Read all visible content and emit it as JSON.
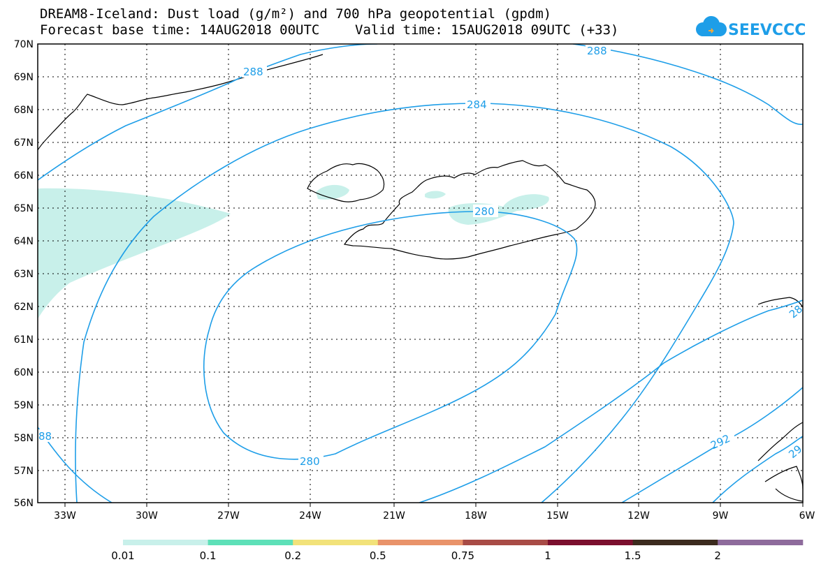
{
  "header": {
    "line1": "DREAM8-Iceland: Dust load (g/m²) and 700 hPa geopotential (gpdm)",
    "forecast_base": "Forecast base time: 14AUG2018 00UTC",
    "valid_time": "Valid time: 15AUG2018 09UTC (+33)"
  },
  "logo": {
    "text": "SEEVCCC",
    "color": "#1e9ee8",
    "icon": "cloud-icon"
  },
  "map": {
    "lat_labels": [
      "70N",
      "69N",
      "68N",
      "67N",
      "66N",
      "65N",
      "64N",
      "63N",
      "62N",
      "61N",
      "60N",
      "59N",
      "58N",
      "57N",
      "56N"
    ],
    "lon_labels": [
      "33W",
      "30W",
      "27W",
      "24W",
      "21W",
      "18W",
      "15W",
      "12W",
      "9W",
      "6W"
    ],
    "contour_labels": {
      "c288_top": "288",
      "c288_topright": "288",
      "c284": "284",
      "c280_upper": "280",
      "c280_lower": "280",
      "c288_left": "88",
      "c292": "292",
      "c28_right": "28",
      "c29_right": "29"
    },
    "contour_color": "#1e9ee8",
    "dust_color": "#c8f0ea"
  },
  "legend": {
    "colors": [
      "#c8f0ea",
      "#5ee0b8",
      "#f2e27a",
      "#e9936a",
      "#a84b46",
      "#7b0f2e",
      "#3c2b1e",
      "#8e6b9c"
    ],
    "labels": [
      "0.01",
      "0.1",
      "0.2",
      "0.5",
      "0.75",
      "1",
      "1.5",
      "2"
    ]
  }
}
